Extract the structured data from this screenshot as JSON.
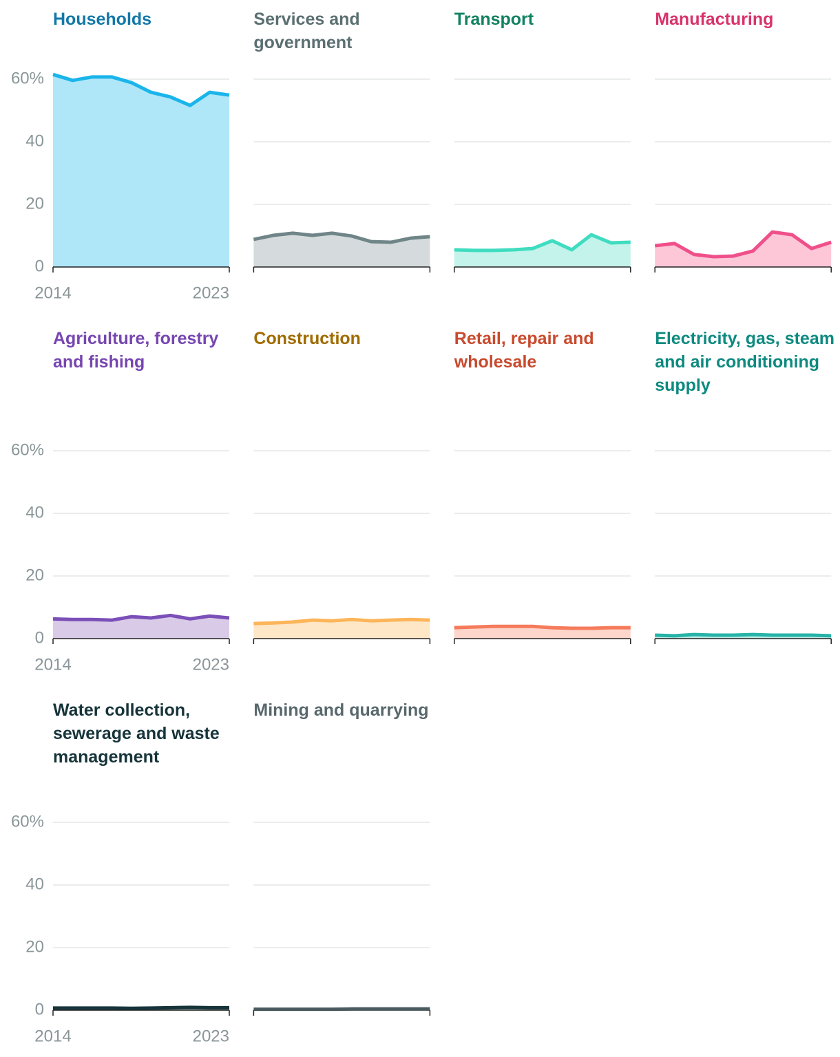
{
  "chart_data": [
    {
      "type": "area",
      "title": "Households",
      "title_color": "#1278a8",
      "color": "#1ab5ea",
      "fill_color": "#b0e7f8",
      "x": [
        2014,
        2015,
        2016,
        2017,
        2018,
        2019,
        2020,
        2021,
        2022,
        2023
      ],
      "values": [
        61.5,
        59.6,
        60.7,
        60.7,
        58.9,
        55.8,
        54.3,
        51.6,
        55.8,
        54.9
      ],
      "xlim": [
        2014,
        2023
      ],
      "xticks": [
        2014,
        2023
      ],
      "ylim": [
        0,
        60
      ],
      "yticks": [
        0,
        20,
        40,
        {
          "value": 60,
          "label": "60%"
        }
      ],
      "grid": true
    },
    {
      "type": "area",
      "title": "Services and government",
      "title_color": "#5b6f72",
      "color": "#6f8588",
      "fill_color": "#d5dbdc",
      "x": [
        2014,
        2015,
        2016,
        2017,
        2018,
        2019,
        2020,
        2021,
        2022,
        2023
      ],
      "values": [
        8.8,
        10.1,
        10.8,
        10.1,
        10.8,
        9.9,
        8.1,
        7.9,
        9.2,
        9.7
      ],
      "xlim": [
        2014,
        2023
      ],
      "xticks": [
        2014,
        2023
      ],
      "ylim": [
        0,
        60
      ],
      "yticks": [
        0,
        20,
        40,
        {
          "value": 60,
          "label": "60%"
        }
      ],
      "grid": true
    },
    {
      "type": "area",
      "title": "Transport",
      "title_color": "#108060",
      "color": "#3fdcc0",
      "fill_color": "#c3f3ea",
      "x": [
        2014,
        2015,
        2016,
        2017,
        2018,
        2019,
        2020,
        2021,
        2022,
        2023
      ],
      "values": [
        5.5,
        5.3,
        5.3,
        5.5,
        5.9,
        8.4,
        5.5,
        10.3,
        7.7,
        7.9
      ],
      "xlim": [
        2014,
        2023
      ],
      "xticks": [
        2014,
        2023
      ],
      "ylim": [
        0,
        60
      ],
      "yticks": [
        0,
        20,
        40,
        {
          "value": 60,
          "label": "60%"
        }
      ],
      "grid": true
    },
    {
      "type": "area",
      "title": "Manufacturing",
      "title_color": "#d8336a",
      "color": "#f0508a",
      "fill_color": "#fdc7d8",
      "x": [
        2014,
        2015,
        2016,
        2017,
        2018,
        2019,
        2020,
        2021,
        2022,
        2023
      ],
      "values": [
        6.8,
        7.5,
        4.0,
        3.3,
        3.5,
        5.1,
        11.2,
        10.3,
        5.9,
        7.9
      ],
      "xlim": [
        2014,
        2023
      ],
      "xticks": [
        2014,
        2023
      ],
      "ylim": [
        0,
        60
      ],
      "yticks": [
        0,
        20,
        40,
        {
          "value": 60,
          "label": "60%"
        }
      ],
      "grid": true
    },
    {
      "type": "area",
      "title": "Agriculture, forestry and fishing",
      "title_color": "#7746b0",
      "color": "#7b4fb8",
      "fill_color": "#d9cbe8",
      "x": [
        2014,
        2015,
        2016,
        2017,
        2018,
        2019,
        2020,
        2021,
        2022,
        2023
      ],
      "values": [
        6.3,
        6.1,
        6.1,
        5.9,
        7.0,
        6.6,
        7.4,
        6.3,
        7.2,
        6.6
      ],
      "xlim": [
        2014,
        2023
      ],
      "xticks": [
        2014,
        2023
      ],
      "ylim": [
        0,
        60
      ],
      "yticks": [
        0,
        20,
        40,
        {
          "value": 60,
          "label": "60%"
        }
      ],
      "grid": true
    },
    {
      "type": "area",
      "title": "Construction",
      "title_color": "#a06b00",
      "color": "#fdb55a",
      "fill_color": "#fde7c6",
      "x": [
        2014,
        2015,
        2016,
        2017,
        2018,
        2019,
        2020,
        2021,
        2022,
        2023
      ],
      "values": [
        4.8,
        5.0,
        5.3,
        5.9,
        5.7,
        6.1,
        5.7,
        5.9,
        6.1,
        5.9
      ],
      "xlim": [
        2014,
        2023
      ],
      "xticks": [
        2014,
        2023
      ],
      "ylim": [
        0,
        60
      ],
      "yticks": [
        0,
        20,
        40,
        {
          "value": 60,
          "label": "60%"
        }
      ],
      "grid": true
    },
    {
      "type": "area",
      "title": "Retail, repair and wholesale",
      "title_color": "#c84a2e",
      "color": "#f57b5b",
      "fill_color": "#fdd5ca",
      "x": [
        2014,
        2015,
        2016,
        2017,
        2018,
        2019,
        2020,
        2021,
        2022,
        2023
      ],
      "values": [
        3.5,
        3.7,
        3.9,
        3.9,
        3.9,
        3.5,
        3.3,
        3.3,
        3.5,
        3.5
      ],
      "xlim": [
        2014,
        2023
      ],
      "xticks": [
        2014,
        2023
      ],
      "ylim": [
        0,
        60
      ],
      "yticks": [
        0,
        20,
        40,
        {
          "value": 60,
          "label": "60%"
        }
      ],
      "grid": true
    },
    {
      "type": "area",
      "title": "Electricity, gas, steam and air conditioning supply",
      "title_color": "#0d8a80",
      "color": "#26b3a8",
      "fill_color": "#bfeae6",
      "x": [
        2014,
        2015,
        2016,
        2017,
        2018,
        2019,
        2020,
        2021,
        2022,
        2023
      ],
      "values": [
        1.1,
        0.9,
        1.3,
        1.1,
        1.1,
        1.3,
        1.1,
        1.1,
        1.1,
        0.9
      ],
      "xlim": [
        2014,
        2023
      ],
      "xticks": [
        2014,
        2023
      ],
      "ylim": [
        0,
        60
      ],
      "yticks": [
        0,
        20,
        40,
        {
          "value": 60,
          "label": "60%"
        }
      ],
      "grid": true
    },
    {
      "type": "area",
      "title": "Water collection, sewerage and waste management",
      "title_color": "#16343a",
      "color": "#16343a",
      "fill_color": "#b8c2c4",
      "x": [
        2014,
        2015,
        2016,
        2017,
        2018,
        2019,
        2020,
        2021,
        2022,
        2023
      ],
      "values": [
        0.7,
        0.7,
        0.7,
        0.7,
        0.6,
        0.7,
        0.8,
        0.9,
        0.8,
        0.8
      ],
      "xlim": [
        2014,
        2023
      ],
      "xticks": [
        2014,
        2023
      ],
      "ylim": [
        0,
        60
      ],
      "yticks": [
        0,
        20,
        40,
        {
          "value": 60,
          "label": "60%"
        }
      ],
      "grid": true
    },
    {
      "type": "area",
      "title": "Mining and quarrying",
      "title_color": "#58686c",
      "color": "#4a5a5f",
      "fill_color": "#c9d0d2",
      "x": [
        2014,
        2015,
        2016,
        2017,
        2018,
        2019,
        2020,
        2021,
        2022,
        2023
      ],
      "values": [
        0.3,
        0.3,
        0.3,
        0.3,
        0.3,
        0.4,
        0.4,
        0.4,
        0.4,
        0.4
      ],
      "xlim": [
        2014,
        2023
      ],
      "xticks": [
        2014,
        2023
      ],
      "ylim": [
        0,
        60
      ],
      "yticks": [
        0,
        20,
        40,
        {
          "value": 60,
          "label": "60%"
        }
      ],
      "grid": true
    }
  ]
}
